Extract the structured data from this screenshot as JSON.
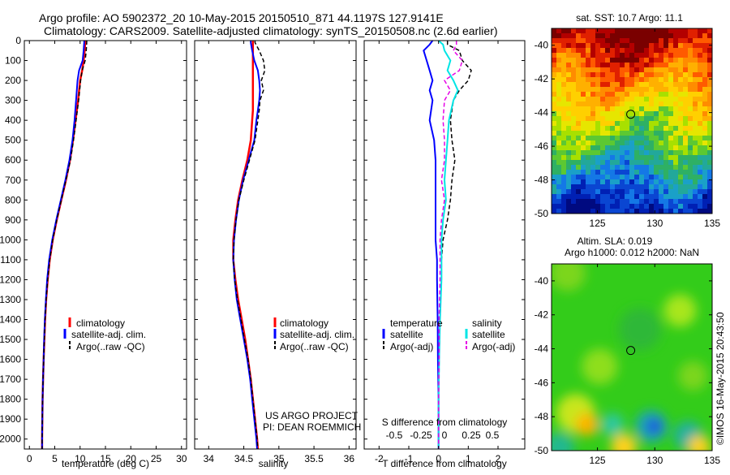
{
  "header": {
    "line1": "Argo profile: AO 5902372_20 10-May-2015 20150510_871 44.1197S 127.9141E",
    "line2": "Climatology: CARS2009. Satellite-adjusted climatology: synTS_20150508.nc (2.6d earlier)"
  },
  "colors": {
    "climatology": "#ff0000",
    "satellite": "#0000ff",
    "argo": "#000000",
    "sal_satellite": "#00e5e5",
    "sal_argo": "#e600e6"
  },
  "credits": {
    "project": "US ARGO PROJECT",
    "pi": "PI: DEAN ROEMMICH",
    "imos": "©IMOS 16-May-2015 20:43:50"
  },
  "chart_data": [
    {
      "type": "line",
      "panel": "temperature",
      "xlabel": "temperature (deg C)",
      "ylabel": "",
      "xlim": [
        -1,
        31
      ],
      "ylim": [
        2050,
        0
      ],
      "x_ticks": [
        0,
        5,
        10,
        15,
        20,
        25,
        30
      ],
      "y_ticks": [
        0,
        100,
        200,
        300,
        400,
        500,
        600,
        700,
        800,
        900,
        1000,
        1100,
        1200,
        1300,
        1400,
        1500,
        1600,
        1700,
        1800,
        1900,
        2000
      ],
      "legend": [
        "climatology",
        "satellite-adj. clim.",
        "Argo(..raw -QC)"
      ],
      "depth": [
        0,
        10,
        50,
        100,
        150,
        200,
        300,
        400,
        500,
        600,
        700,
        800,
        900,
        1000,
        1100,
        1200,
        1300,
        1400,
        1500,
        1600,
        1700,
        1800,
        1900,
        2000,
        2050
      ],
      "series": [
        {
          "name": "climatology",
          "values": [
            11.0,
            11.0,
            10.9,
            10.7,
            10.4,
            10.0,
            9.6,
            9.1,
            8.6,
            8.0,
            7.2,
            6.3,
            5.4,
            4.6,
            4.0,
            3.6,
            3.3,
            3.1,
            2.95,
            2.8,
            2.7,
            2.6,
            2.55,
            2.5,
            2.5
          ]
        },
        {
          "name": "satellite-adj. clim.",
          "values": [
            10.8,
            10.8,
            10.7,
            10.5,
            9.8,
            9.5,
            9.2,
            8.9,
            8.5,
            7.9,
            7.1,
            6.2,
            5.3,
            4.5,
            3.9,
            3.5,
            3.25,
            3.05,
            2.9,
            2.8,
            2.7,
            2.6,
            2.55,
            2.5,
            2.5
          ]
        },
        {
          "name": "Argo(..raw -QC)",
          "values": [
            11.3,
            11.3,
            11.2,
            11.0,
            10.4,
            10.1,
            9.7,
            9.2,
            8.7,
            8.1,
            7.2,
            6.3,
            5.4,
            4.6,
            4.0,
            3.6,
            3.3,
            3.1,
            2.95,
            2.8,
            2.7,
            2.6,
            2.55,
            2.5,
            2.5
          ]
        }
      ]
    },
    {
      "type": "line",
      "panel": "salinity",
      "xlabel": "salinity",
      "ylabel": "",
      "xlim": [
        33.8,
        36.1
      ],
      "ylim": [
        2050,
        0
      ],
      "x_ticks": [
        34,
        34.5,
        35,
        35.5,
        36
      ],
      "legend": [
        "climatology",
        "satellite-adj. clim.",
        "Argo(..raw -QC)"
      ],
      "depth": [
        0,
        10,
        50,
        100,
        150,
        200,
        250,
        300,
        350,
        400,
        500,
        600,
        700,
        800,
        900,
        1000,
        1100,
        1200,
        1300,
        1400,
        1500,
        1600,
        1700,
        1800,
        1900,
        2000,
        2050
      ],
      "series": [
        {
          "name": "climatology",
          "values": [
            34.63,
            34.63,
            34.63,
            34.63,
            34.63,
            34.63,
            34.63,
            34.63,
            34.63,
            34.62,
            34.6,
            34.55,
            34.48,
            34.42,
            34.38,
            34.35,
            34.35,
            34.38,
            34.42,
            34.47,
            34.52,
            34.56,
            34.6,
            34.63,
            34.66,
            34.69,
            34.7
          ]
        },
        {
          "name": "satellite-adj. clim.",
          "values": [
            34.6,
            34.6,
            34.62,
            34.65,
            34.7,
            34.72,
            34.73,
            34.72,
            34.7,
            34.68,
            34.65,
            34.57,
            34.49,
            34.43,
            34.39,
            34.36,
            34.35,
            34.37,
            34.4,
            34.45,
            34.5,
            34.55,
            34.59,
            34.62,
            34.65,
            34.68,
            34.69
          ]
        },
        {
          "name": "Argo(..raw -QC)",
          "values": [
            34.66,
            34.66,
            34.72,
            34.78,
            34.8,
            34.75,
            34.78,
            34.73,
            34.72,
            34.7,
            34.66,
            34.58,
            34.5,
            34.43,
            34.39,
            34.36,
            34.35,
            34.37,
            34.41,
            34.46,
            34.51,
            34.56,
            34.6,
            34.63,
            34.66,
            34.69,
            34.7
          ]
        }
      ]
    },
    {
      "type": "line",
      "panel": "difference",
      "xlabel": "T difference from climatology",
      "title": "S difference from climatology",
      "xlim": [
        -2.5,
        2.9
      ],
      "ylim": [
        2050,
        0
      ],
      "x_ticks": [
        -2,
        -1,
        0,
        1,
        2
      ],
      "s_ticks": [
        "-0.5",
        "-0.25",
        "0",
        "0.25",
        "0.5"
      ],
      "legend_headers": [
        "temperature",
        "salinity"
      ],
      "legend": [
        "satellite",
        "Argo(-adj)",
        "satellite",
        "Argo(-adj)"
      ],
      "depth": [
        0,
        20,
        50,
        100,
        150,
        200,
        250,
        300,
        400,
        500,
        600,
        700,
        800,
        900,
        1000,
        1100,
        1200,
        1400,
        1600,
        1800,
        2000,
        2050
      ],
      "series": [
        {
          "name": "satellite",
          "quantity": "temperature",
          "values": [
            -0.2,
            -0.3,
            -0.5,
            -0.4,
            -0.3,
            -0.2,
            -0.3,
            -0.2,
            -0.3,
            -0.15,
            -0.1,
            -0.1,
            -0.1,
            -0.1,
            -0.1,
            -0.05,
            -0.05,
            -0.03,
            -0.02,
            0,
            0,
            0
          ]
        },
        {
          "name": "Argo(-adj)",
          "quantity": "temperature",
          "values": [
            0.3,
            0.3,
            0.7,
            0.8,
            1.1,
            1.0,
            0.7,
            0.5,
            0.4,
            0.45,
            0.55,
            0.45,
            0.4,
            0.3,
            0.15,
            0.1,
            0.1,
            0.05,
            0.02,
            0,
            0,
            0
          ]
        },
        {
          "name": "satellite",
          "quantity": "salinity",
          "values": [
            0,
            0.15,
            0.2,
            0.4,
            0.3,
            0.5,
            0.65,
            0.5,
            0.35,
            0.3,
            0.25,
            0.2,
            0.25,
            0.15,
            0.1,
            0.1,
            0.1,
            0.05,
            0.02,
            0,
            0,
            0
          ]
        },
        {
          "name": "Argo(-adj)",
          "quantity": "salinity",
          "values": [
            0.6,
            0.6,
            0.5,
            0.8,
            0.7,
            0.2,
            0.4,
            0.2,
            0.15,
            0.2,
            0.2,
            0.1,
            0.2,
            0.1,
            0.05,
            0.05,
            0.05,
            0.02,
            0.02,
            0,
            0,
            0
          ]
        }
      ]
    },
    {
      "type": "heatmap",
      "panel": "sst-map",
      "title": "sat. SST: 10.7 Argo: 11.1",
      "xlim": [
        121,
        135
      ],
      "ylim": [
        -50,
        -39
      ],
      "x_ticks": [
        125,
        130,
        135
      ],
      "y_ticks": [
        -40,
        -42,
        -44,
        -46,
        -48,
        -50
      ],
      "marker": {
        "lon": 127.9,
        "lat": -44.1
      }
    },
    {
      "type": "heatmap",
      "panel": "sla-map",
      "title_line1": "Altim. SLA: 0.019",
      "title_line2": "Argo h1000: 0.012 h2000: NaN",
      "xlim": [
        121,
        135
      ],
      "ylim": [
        -50,
        -39
      ],
      "x_ticks": [
        125,
        130,
        135
      ],
      "y_ticks": [
        -40,
        -42,
        -44,
        -46,
        -48,
        -50
      ],
      "marker": {
        "lon": 127.9,
        "lat": -44.1
      }
    }
  ]
}
